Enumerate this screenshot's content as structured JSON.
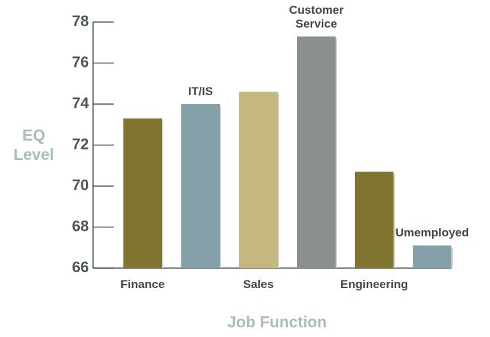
{
  "chart_data": {
    "type": "bar",
    "x_label": "Job Function",
    "y_label": "EQ Level",
    "categories": [
      "Finance",
      "IT/IS",
      "Sales",
      "Customer Service",
      "Engineering",
      "Umemployed"
    ],
    "values": [
      73.3,
      74.0,
      74.6,
      77.3,
      70.7,
      67.1
    ],
    "colors": [
      "#7f7530",
      "#84a0a8",
      "#c4b87e",
      "#8a9090",
      "#7f7530",
      "#84a0a8"
    ],
    "ylim": [
      66,
      78
    ],
    "yticks": [
      66,
      68,
      70,
      72,
      74,
      76,
      78
    ]
  }
}
